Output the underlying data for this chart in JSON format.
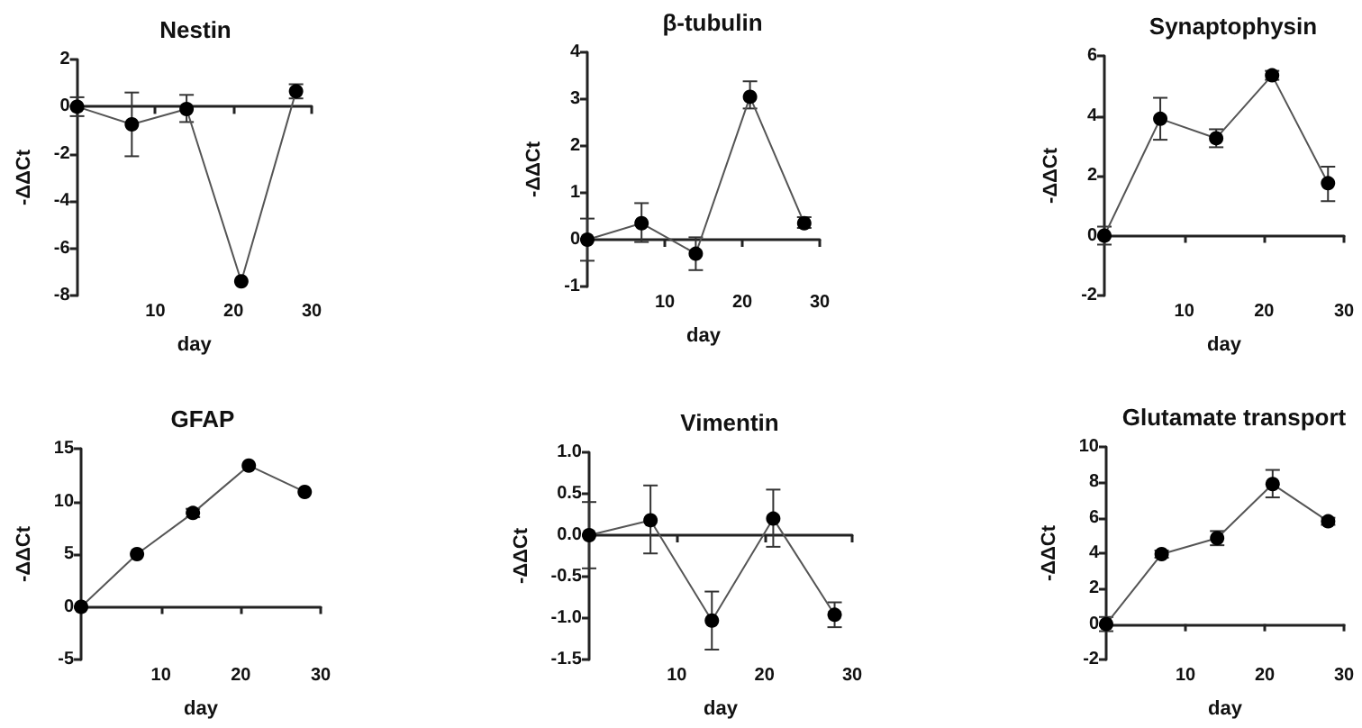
{
  "chart_data": [
    {
      "type": "line",
      "title": "Nestin",
      "xlabel": "day",
      "ylabel": "-ΔΔCt",
      "marker": "circle",
      "color": "#000000",
      "x": [
        0,
        7,
        14,
        21,
        28
      ],
      "values": [
        0,
        -0.75,
        -0.1,
        -7.4,
        0.65
      ],
      "errors": [
        0.4,
        [
          -2.1,
          0.6
        ],
        [
          -0.65,
          0.5
        ],
        null,
        0.3
      ],
      "xlim": [
        0,
        30
      ],
      "xticks": [
        10,
        20,
        30
      ],
      "ylim": [
        -8,
        2
      ],
      "yticks": [
        -8,
        -6,
        -4,
        -2,
        0,
        2
      ]
    },
    {
      "type": "line",
      "title": "β-tubulin",
      "xlabel": "day",
      "ylabel": "-ΔΔCt",
      "marker": "circle",
      "color": "#000000",
      "x": [
        0,
        7,
        14,
        21,
        28
      ],
      "values": [
        0,
        0.35,
        -0.3,
        3.05,
        0.35
      ],
      "errors": [
        0.45,
        [
          -0.05,
          0.78
        ],
        [
          -0.65,
          0.05
        ],
        [
          2.8,
          3.38
        ],
        [
          0.25,
          0.48
        ]
      ],
      "xlim": [
        0,
        30
      ],
      "xticks": [
        10,
        20,
        30
      ],
      "ylim": [
        -1,
        4
      ],
      "yticks": [
        -1,
        0,
        1,
        2,
        3,
        4
      ]
    },
    {
      "type": "line",
      "title": "Synaptophysin",
      "xlabel": "day",
      "ylabel": "-ΔΔCt",
      "marker": "circle",
      "color": "#000000",
      "x": [
        0,
        7,
        14,
        21,
        28
      ],
      "values": [
        0,
        3.9,
        3.25,
        5.35,
        1.75
      ],
      "errors": [
        0.3,
        [
          3.2,
          4.6
        ],
        [
          2.95,
          3.55
        ],
        [
          5.2,
          5.5
        ],
        [
          1.15,
          2.3
        ]
      ],
      "xlim": [
        0,
        30
      ],
      "xticks": [
        10,
        20,
        30
      ],
      "ylim": [
        -2,
        6
      ],
      "yticks": [
        -2,
        0,
        2,
        4,
        6
      ]
    },
    {
      "type": "line",
      "title": "GFAP",
      "xlabel": "day",
      "ylabel": "-ΔΔCt",
      "marker": "circle",
      "color": "#000000",
      "x": [
        0,
        7,
        14,
        21,
        28
      ],
      "values": [
        0,
        5,
        8.9,
        13.4,
        10.9
      ],
      "errors": [
        null,
        null,
        0.4,
        null,
        null
      ],
      "xlim": [
        0,
        30
      ],
      "xticks": [
        10,
        20,
        30
      ],
      "ylim": [
        -5,
        15
      ],
      "yticks": [
        -5,
        0,
        5,
        10,
        15
      ]
    },
    {
      "type": "line",
      "title": "Vimentin",
      "xlabel": "day",
      "ylabel": "-ΔΔCt",
      "marker": "circle",
      "color": "#000000",
      "x": [
        0,
        7,
        14,
        21,
        28
      ],
      "values": [
        0,
        0.18,
        -1.03,
        0.2,
        -0.96
      ],
      "errors": [
        0.4,
        [
          -0.22,
          0.6
        ],
        [
          -1.38,
          -0.68
        ],
        [
          -0.14,
          0.55
        ],
        [
          -1.11,
          -0.81
        ]
      ],
      "xlim": [
        0,
        30
      ],
      "xticks": [
        10,
        20,
        30
      ],
      "ylim": [
        -1.5,
        1
      ],
      "yticks": [
        -1.5,
        {
          "value": -1,
          "label": "-1.0"
        },
        -0.5,
        {
          "value": 0,
          "label": "0.0"
        },
        0.5,
        {
          "value": 1,
          "label": "1.0"
        }
      ]
    },
    {
      "type": "line",
      "title": "Glutamate transport",
      "xlabel": "day",
      "ylabel": "-ΔΔCt",
      "marker": "circle",
      "color": "#000000",
      "x": [
        0,
        7,
        14,
        21,
        28
      ],
      "values": [
        0,
        3.95,
        4.85,
        7.9,
        5.8
      ],
      "errors": [
        0.4,
        [
          3.75,
          4.15
        ],
        [
          4.45,
          5.25
        ],
        [
          7.15,
          8.7
        ],
        [
          5.6,
          6
        ]
      ],
      "xlim": [
        0,
        30
      ],
      "xticks": [
        10,
        20,
        30
      ],
      "ylim": [
        -2,
        10
      ],
      "yticks": [
        -2,
        0,
        2,
        4,
        6,
        8,
        10
      ]
    }
  ]
}
